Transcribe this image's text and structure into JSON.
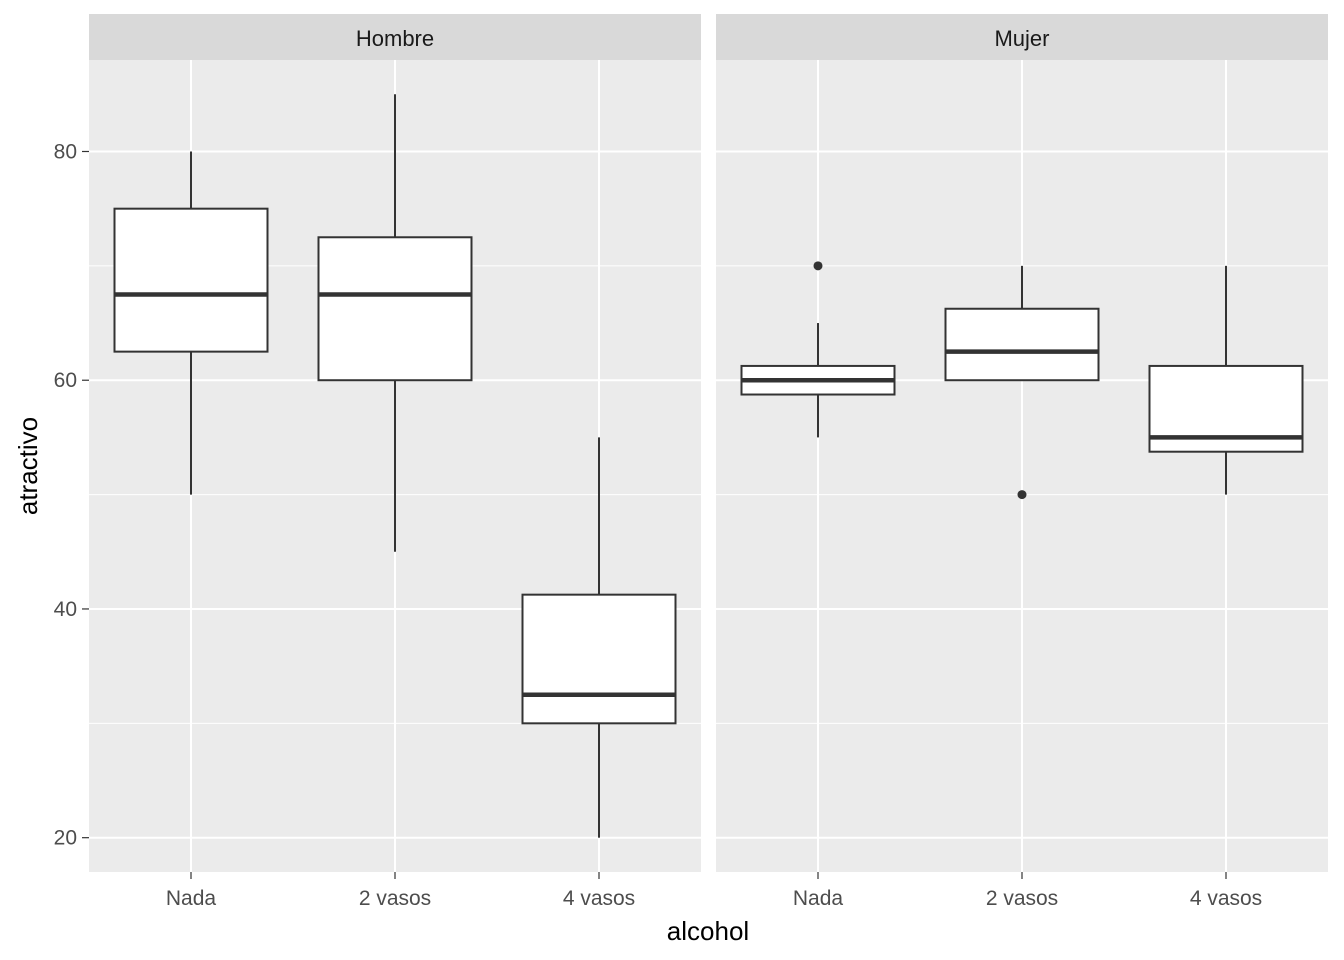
{
  "chart_data": {
    "type": "boxplot",
    "xlabel": "alcohol",
    "ylabel": "atractivo",
    "ylim": [
      17,
      88
    ],
    "y_ticks": [
      20,
      40,
      60,
      80
    ],
    "categories": [
      "Nada",
      "2 vasos",
      "4 vasos"
    ],
    "grid": true,
    "colors": {
      "panel_bg": "#ebebeb",
      "strip_bg": "#d9d9d9",
      "grid": "#ffffff",
      "box_fill": "#ffffff",
      "box_line": "#333333"
    },
    "facets": [
      {
        "label": "Hombre",
        "boxes": [
          {
            "category": "Nada",
            "whisker_low": 50,
            "q1": 62.5,
            "median": 67.5,
            "q3": 75,
            "whisker_high": 80,
            "outliers": []
          },
          {
            "category": "2 vasos",
            "whisker_low": 45,
            "q1": 60,
            "median": 67.5,
            "q3": 72.5,
            "whisker_high": 85,
            "outliers": []
          },
          {
            "category": "4 vasos",
            "whisker_low": 20,
            "q1": 30,
            "median": 32.5,
            "q3": 41.25,
            "whisker_high": 55,
            "outliers": []
          }
        ]
      },
      {
        "label": "Mujer",
        "boxes": [
          {
            "category": "Nada",
            "whisker_low": 55,
            "q1": 58.75,
            "median": 60,
            "q3": 61.25,
            "whisker_high": 65,
            "outliers": [
              70
            ]
          },
          {
            "category": "2 vasos",
            "whisker_low": 60,
            "q1": 60,
            "median": 62.5,
            "q3": 66.25,
            "whisker_high": 70,
            "outliers": [
              50
            ]
          },
          {
            "category": "4 vasos",
            "whisker_low": 50,
            "q1": 53.75,
            "median": 55,
            "q3": 61.25,
            "whisker_high": 70,
            "outliers": []
          }
        ]
      }
    ]
  }
}
